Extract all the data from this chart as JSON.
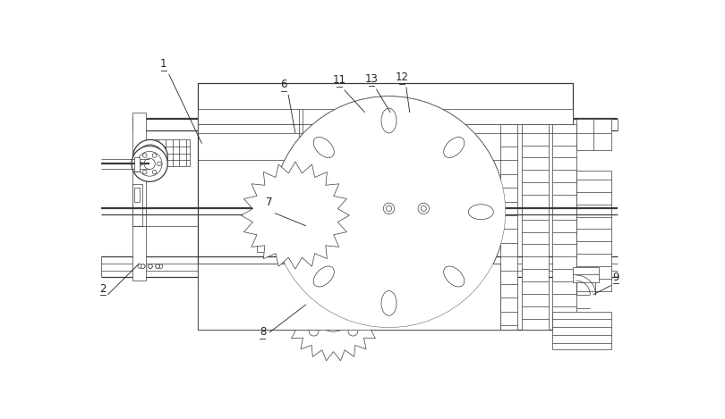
{
  "bg_color": "#ffffff",
  "lc": "#3a3a3a",
  "thin": 0.5,
  "med": 0.9,
  "thick": 1.6,
  "label_fs": 8.5
}
